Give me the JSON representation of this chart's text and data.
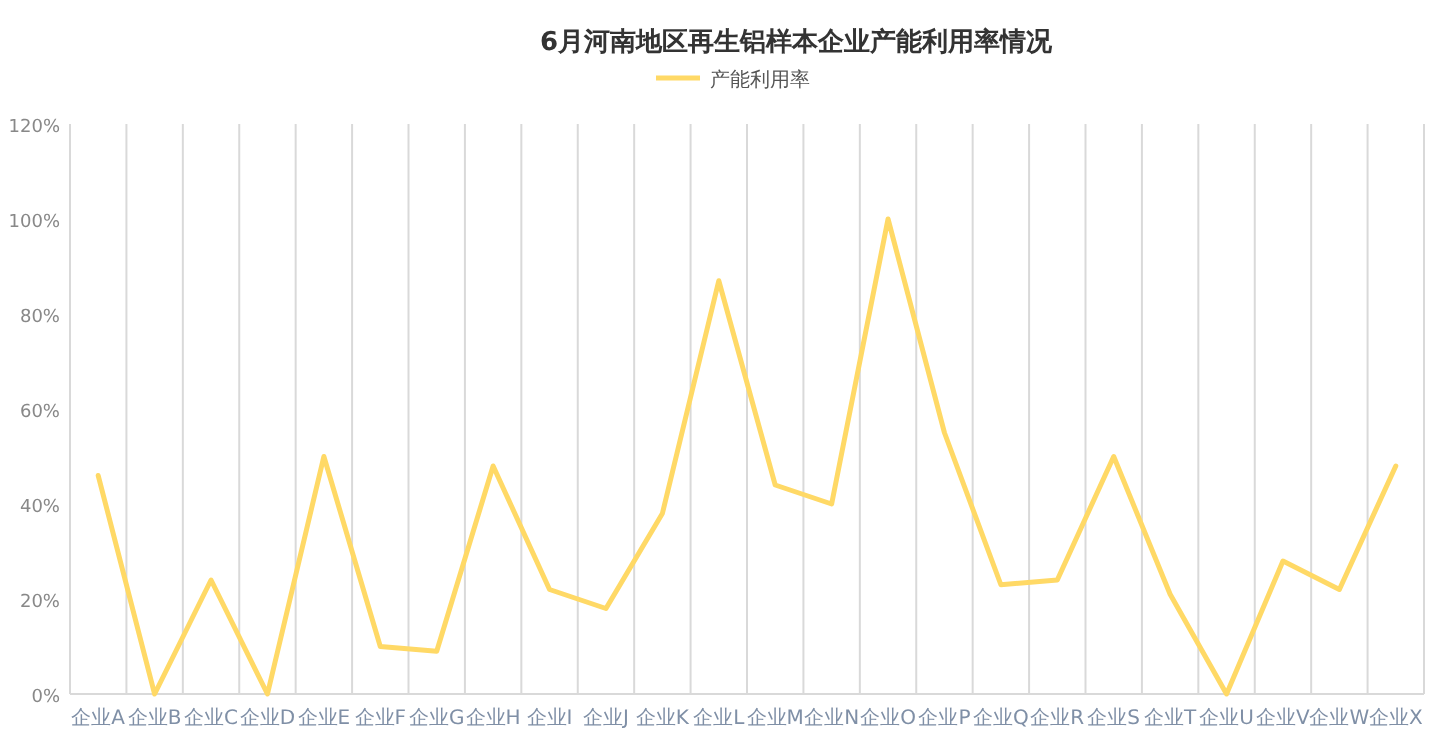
{
  "chart_data": {
    "type": "line",
    "title": "6月河南地区再生铝样本企业产能利用率情况",
    "categories": [
      "企业A",
      "企业B",
      "企业C",
      "企业D",
      "企业E",
      "企业F",
      "企业G",
      "企业H",
      "企业I",
      "企业J",
      "企业K",
      "企业L",
      "企业M",
      "企业N",
      "企业O",
      "企业P",
      "企业Q",
      "企业R",
      "企业S",
      "企业T",
      "企业U",
      "企业V",
      "企业W",
      "企业X"
    ],
    "series": [
      {
        "name": "产能利用率",
        "color": "#ffd966",
        "values": [
          46,
          0,
          24,
          0,
          50,
          10,
          9,
          48,
          22,
          18,
          38,
          87,
          44,
          40,
          100,
          55,
          23,
          24,
          50,
          21,
          0,
          28,
          22,
          48
        ]
      }
    ],
    "ylim": [
      0,
      120
    ],
    "yticks": [
      {
        "value": 0,
        "label": "0%"
      },
      {
        "value": 20,
        "label": "20%"
      },
      {
        "value": 40,
        "label": "40%"
      },
      {
        "value": 60,
        "label": "60%"
      },
      {
        "value": 80,
        "label": "80%"
      },
      {
        "value": 100,
        "label": "100%"
      },
      {
        "value": 120,
        "label": "120%"
      }
    ],
    "grid": "x",
    "legend": "top",
    "marker": "none",
    "line_style": "solid"
  }
}
